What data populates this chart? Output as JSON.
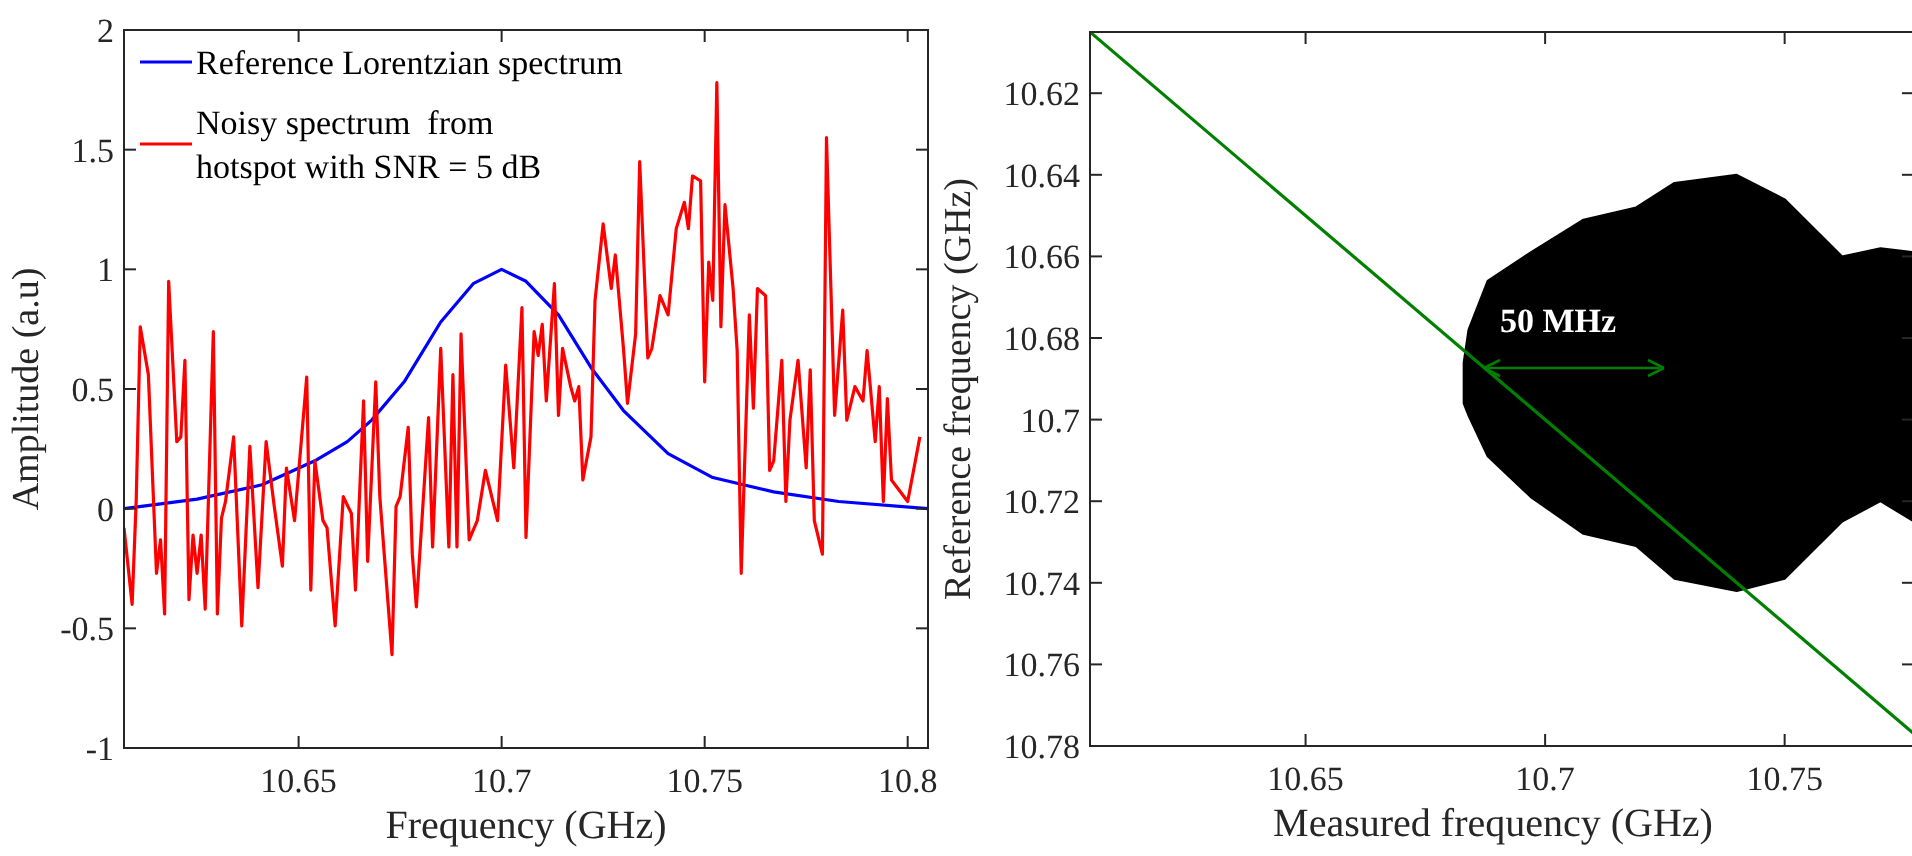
{
  "chart_data": [
    {
      "type": "line",
      "xlabel": "Frequency (GHz)",
      "ylabel": "Amplitude (a.u)",
      "xlim": [
        10.607,
        10.805
      ],
      "xticks": [
        10.65,
        10.7,
        10.75,
        10.8
      ],
      "ylim": [
        -1,
        2
      ],
      "yticks": [
        -1,
        -0.5,
        0,
        0.5,
        1,
        1.5,
        2
      ],
      "legend": "top left",
      "series": [
        {
          "name": "Reference Lorentzian spectrum",
          "color": "#0000ff",
          "x": [
            10.607,
            10.625,
            10.641,
            10.654,
            10.662,
            10.668,
            10.676,
            10.685,
            10.693,
            10.7,
            10.706,
            10.714,
            10.722,
            10.73,
            10.741,
            10.752,
            10.767,
            10.783,
            10.805
          ],
          "values": [
            0.0,
            0.04,
            0.1,
            0.2,
            0.28,
            0.37,
            0.53,
            0.78,
            0.94,
            1.0,
            0.95,
            0.81,
            0.59,
            0.41,
            0.23,
            0.13,
            0.07,
            0.03,
            0.0
          ]
        },
        {
          "name": "Noisy spectrum  from\nhotspot with SNR = 5 dB",
          "color": "#ff0000",
          "x": [
            10.607,
            10.609,
            10.61,
            10.611,
            10.613,
            10.615,
            10.616,
            10.617,
            10.618,
            10.62,
            10.621,
            10.622,
            10.623,
            10.624,
            10.625,
            10.626,
            10.627,
            10.629,
            10.63,
            10.631,
            10.632,
            10.634,
            10.636,
            10.638,
            10.64,
            10.642,
            10.644,
            10.646,
            10.647,
            10.649,
            10.652,
            10.653,
            10.654,
            10.656,
            10.657,
            10.659,
            10.661,
            10.663,
            10.664,
            10.666,
            10.667,
            10.669,
            10.67,
            10.673,
            10.674,
            10.675,
            10.677,
            10.678,
            10.679,
            10.682,
            10.683,
            10.685,
            10.687,
            10.688,
            10.689,
            10.69,
            10.692,
            10.694,
            10.696,
            10.699,
            10.701,
            10.703,
            10.705,
            10.706,
            10.708,
            10.709,
            10.71,
            10.711,
            10.713,
            10.714,
            10.715,
            10.717,
            10.718,
            10.719,
            10.72,
            10.722,
            10.723,
            10.725,
            10.727,
            10.728,
            10.73,
            10.731,
            10.733,
            10.734,
            10.736,
            10.737,
            10.739,
            10.741,
            10.743,
            10.745,
            10.746,
            10.747,
            10.749,
            10.75,
            10.751,
            10.752,
            10.753,
            10.754,
            10.755,
            10.757,
            10.758,
            10.759,
            10.761,
            10.762,
            10.763,
            10.765,
            10.766,
            10.767,
            10.769,
            10.77,
            10.771,
            10.773,
            10.775,
            10.776,
            10.777,
            10.779,
            10.78,
            10.782,
            10.784,
            10.785,
            10.787,
            10.789,
            10.79,
            10.792,
            10.793,
            10.794,
            10.795,
            10.796,
            10.8,
            10.803
          ],
          "values": [
            -0.08,
            -0.4,
            0.03,
            0.76,
            0.56,
            -0.27,
            -0.13,
            -0.44,
            0.95,
            0.28,
            0.3,
            0.62,
            -0.38,
            -0.11,
            -0.27,
            -0.11,
            -0.42,
            0.74,
            -0.44,
            -0.04,
            0.03,
            0.3,
            -0.49,
            0.26,
            -0.33,
            0.28,
            0.01,
            -0.24,
            0.17,
            -0.05,
            0.55,
            -0.34,
            0.2,
            -0.05,
            -0.08,
            -0.49,
            0.05,
            -0.02,
            -0.34,
            0.45,
            -0.22,
            0.53,
            0.05,
            -0.61,
            0.01,
            0.05,
            0.34,
            -0.19,
            -0.41,
            0.38,
            -0.16,
            0.67,
            -0.16,
            0.56,
            -0.16,
            0.73,
            -0.13,
            -0.05,
            0.16,
            -0.05,
            0.6,
            0.17,
            0.84,
            -0.12,
            0.74,
            0.64,
            0.77,
            0.45,
            0.94,
            0.39,
            0.67,
            0.51,
            0.45,
            0.51,
            0.12,
            0.3,
            0.87,
            1.19,
            0.92,
            1.06,
            0.67,
            0.44,
            0.73,
            1.45,
            0.63,
            0.67,
            0.89,
            0.81,
            1.17,
            1.28,
            1.17,
            1.39,
            1.37,
            0.53,
            1.03,
            0.87,
            1.78,
            0.76,
            1.27,
            0.92,
            0.66,
            -0.27,
            0.81,
            0.42,
            0.92,
            0.89,
            0.16,
            0.2,
            0.62,
            0.03,
            0.37,
            0.62,
            0.17,
            0.58,
            -0.05,
            -0.19,
            1.55,
            0.39,
            0.83,
            0.37,
            0.51,
            0.45,
            0.66,
            0.28,
            0.51,
            0.03,
            0.46,
            0.12,
            0.03,
            0.3
          ]
        }
      ]
    },
    {
      "type": "line",
      "xlabel": "Measured frequency (GHz)",
      "ylabel": "Reference frequency (GHz)",
      "xlim": [
        10.605,
        10.777
      ],
      "xticks": [
        10.65,
        10.7,
        10.75
      ],
      "ylim": [
        10.78,
        10.605
      ],
      "yticks": [
        10.62,
        10.64,
        10.66,
        10.68,
        10.7,
        10.72,
        10.74,
        10.76,
        10.78
      ],
      "annotations": [
        "50 MHz"
      ],
      "series": [
        {
          "type": "area",
          "color": "#000000",
          "x": [
            10.683,
            10.684,
            10.688,
            10.697,
            10.708,
            10.719,
            10.727,
            10.74,
            10.75,
            10.762,
            10.77,
            10.777,
            10.777,
            10.77,
            10.762,
            10.75,
            10.74,
            10.727,
            10.719,
            10.708,
            10.697,
            10.688,
            10.684,
            10.683
          ],
          "values": [
            10.686,
            10.678,
            10.666,
            10.659,
            10.651,
            10.648,
            10.642,
            10.64,
            10.646,
            10.66,
            10.658,
            10.659,
            10.725,
            10.72,
            10.725,
            10.739,
            10.742,
            10.739,
            10.731,
            10.728,
            10.719,
            10.709,
            10.699,
            10.696
          ]
        },
        {
          "color": "#008000",
          "x": [
            10.605,
            10.777
          ],
          "values": [
            10.605,
            10.777
          ]
        }
      ]
    }
  ]
}
